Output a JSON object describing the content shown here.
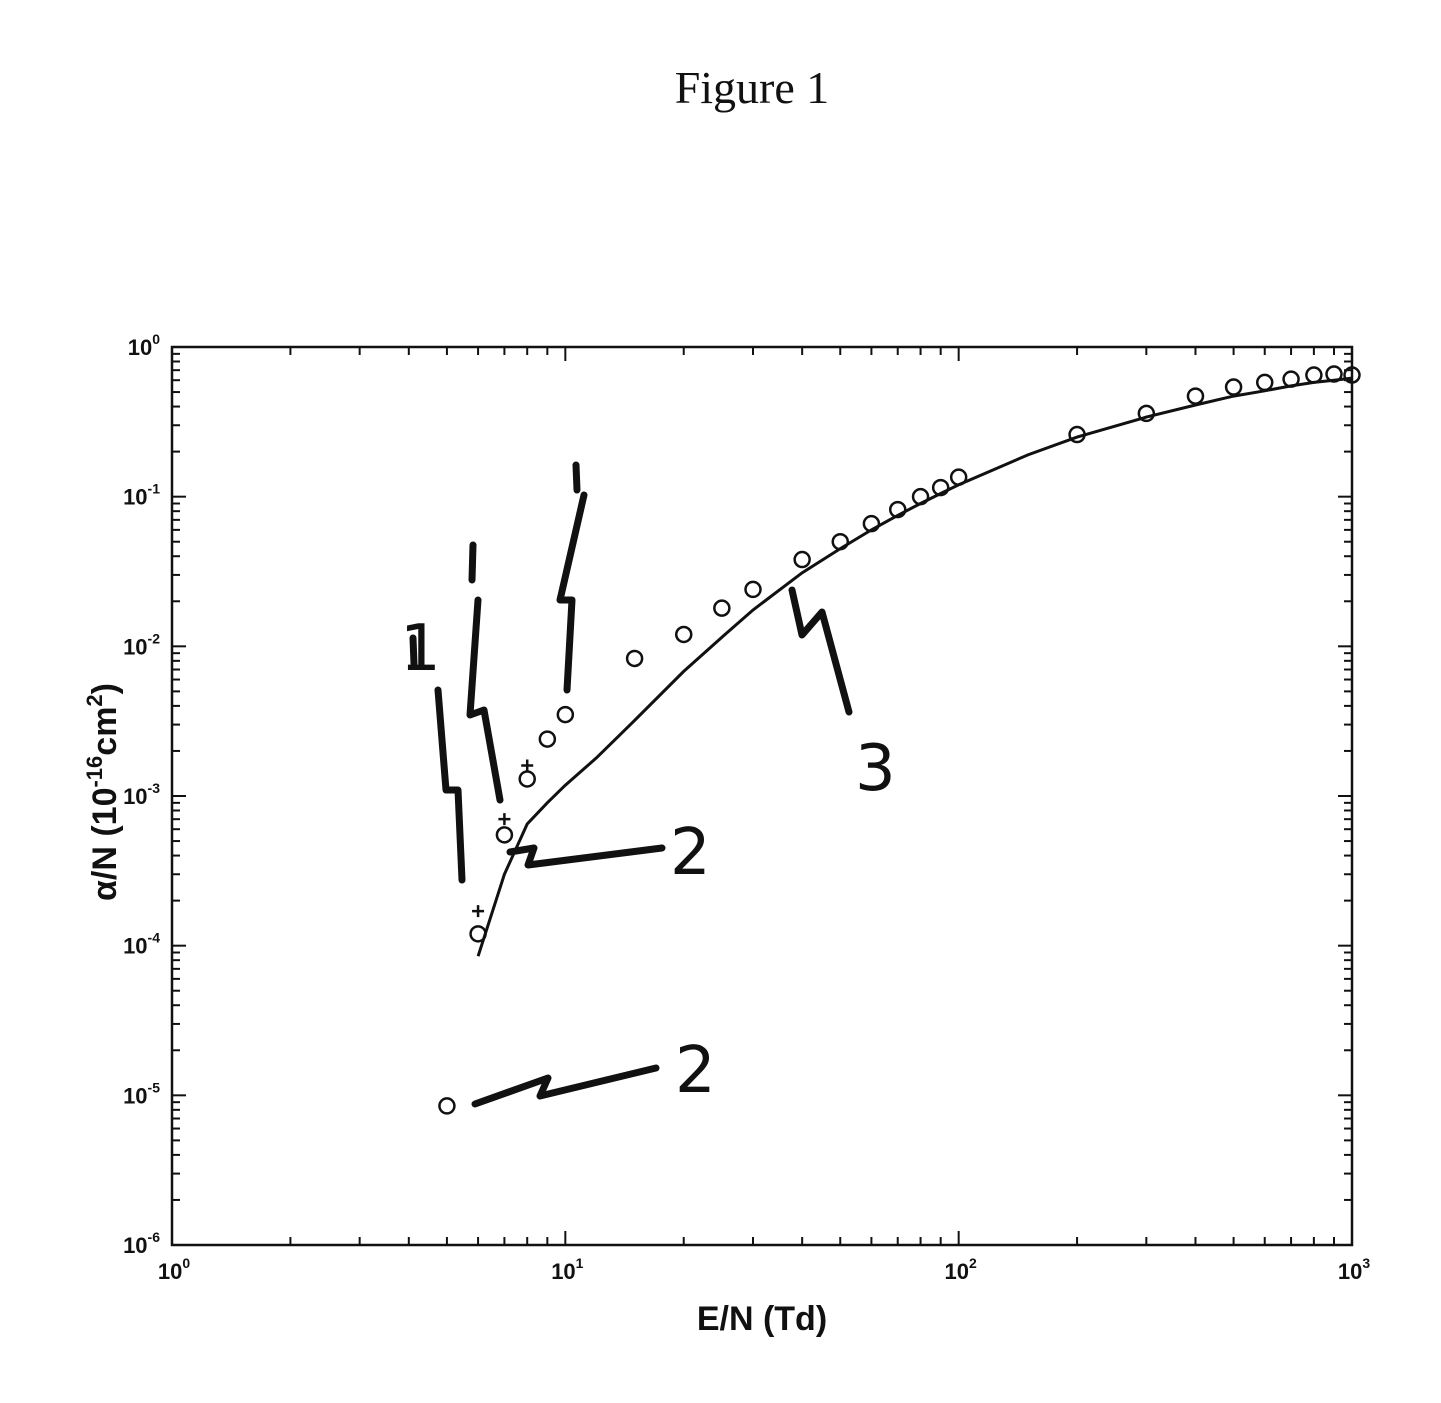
{
  "figure": {
    "title": "Figure 1"
  },
  "chart_data": {
    "type": "scatter",
    "title": "",
    "xlabel": "E/N (Td)",
    "ylabel_prefix": "α/N (10",
    "ylabel_exp1": "-16",
    "ylabel_mid": "cm",
    "ylabel_exp2": "2",
    "ylabel_suffix": ")",
    "x_scale": "log",
    "y_scale": "log",
    "xlim": [
      1,
      1000
    ],
    "ylim": [
      1e-06,
      1
    ],
    "grid": false,
    "x_ticks": [
      {
        "base": "10",
        "exp": "0"
      },
      {
        "base": "10",
        "exp": "1"
      },
      {
        "base": "10",
        "exp": "2"
      },
      {
        "base": "10",
        "exp": "3"
      }
    ],
    "y_ticks": [
      {
        "base": "10",
        "exp": "-6"
      },
      {
        "base": "10",
        "exp": "-5"
      },
      {
        "base": "10",
        "exp": "-4"
      },
      {
        "base": "10",
        "exp": "-3"
      },
      {
        "base": "10",
        "exp": "-2"
      },
      {
        "base": "10",
        "exp": "-1"
      },
      {
        "base": "10",
        "exp": "0"
      }
    ],
    "series": [
      {
        "marker": "circle",
        "x": [
          5,
          6,
          7,
          8,
          9,
          10,
          15,
          20,
          25,
          30,
          40,
          50,
          60,
          70,
          80,
          90,
          100,
          200,
          300,
          400,
          500,
          600,
          700,
          800,
          900,
          1000
        ],
        "y": [
          8.5e-06,
          0.00012,
          0.00055,
          0.0013,
          0.0024,
          0.0035,
          0.0083,
          0.012,
          0.018,
          0.024,
          0.038,
          0.05,
          0.066,
          0.082,
          0.1,
          0.115,
          0.135,
          0.26,
          0.36,
          0.47,
          0.54,
          0.58,
          0.61,
          0.65,
          0.66,
          0.65
        ]
      },
      {
        "marker": "plus",
        "x": [
          6,
          7,
          8
        ],
        "y": [
          0.00017,
          0.0007,
          0.0016
        ]
      },
      {
        "marker": "line",
        "x": [
          6,
          7,
          8,
          9,
          10,
          12,
          15,
          20,
          25,
          30,
          40,
          50,
          60,
          70,
          80,
          90,
          100,
          150,
          200,
          300,
          400,
          500,
          600,
          700,
          800,
          900,
          1000
        ],
        "y": [
          8.5e-05,
          0.0003,
          0.00065,
          0.0009,
          0.00118,
          0.0018,
          0.0032,
          0.0068,
          0.0115,
          0.0175,
          0.031,
          0.045,
          0.06,
          0.075,
          0.09,
          0.105,
          0.12,
          0.19,
          0.25,
          0.34,
          0.41,
          0.47,
          0.51,
          0.55,
          0.58,
          0.6,
          0.62
        ]
      }
    ],
    "reference_numerals": [
      "1",
      "2",
      "2",
      "3"
    ]
  }
}
